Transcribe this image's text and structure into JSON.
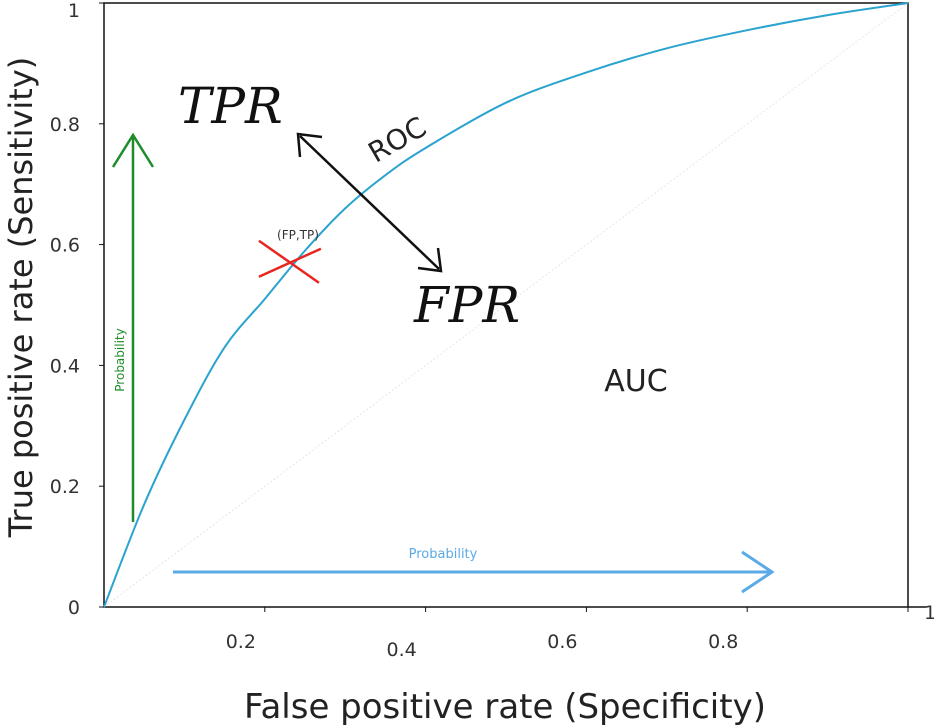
{
  "chart_data": {
    "type": "line",
    "xlabel": "False positive rate (Specificity)",
    "ylabel": "True positive rate (Sensitivity)",
    "xlim": [
      0,
      1
    ],
    "ylim": [
      0,
      1
    ],
    "grid": false,
    "x_ticks": [
      "0.2",
      "0.4",
      "0.6",
      "0.8",
      "1"
    ],
    "y_ticks": [
      "0",
      "0.2",
      "0.4",
      "0.6",
      "0.8",
      "1"
    ],
    "series": [
      {
        "name": "ROC",
        "color": "#2aa3cf",
        "x": [
          0,
          0.05,
          0.1,
          0.15,
          0.2,
          0.25,
          0.3,
          0.35,
          0.4,
          0.5,
          0.6,
          0.7,
          0.8,
          0.9,
          1.0
        ],
        "y": [
          0,
          0.17,
          0.31,
          0.43,
          0.51,
          0.59,
          0.66,
          0.715,
          0.76,
          0.835,
          0.885,
          0.925,
          0.955,
          0.98,
          1.0
        ]
      }
    ],
    "diagonal": {
      "x": [
        0,
        1
      ],
      "y": [
        0,
        1
      ],
      "color": "#e6e6e6"
    },
    "marked_point": {
      "x": 0.23,
      "y": 0.57,
      "label": "(FP,TP)",
      "color": "#e8251f"
    },
    "annotations": {
      "tpr": "TPR",
      "fpr": "FPR",
      "roc": "ROC",
      "auc": "AUC",
      "prob_vertical": "Probability",
      "prob_horizontal": "Probability"
    },
    "colors": {
      "axis": "#111111",
      "green": "#1e8c2a",
      "blue_arrow": "#5aaae6",
      "black_arrow": "#111111"
    }
  }
}
